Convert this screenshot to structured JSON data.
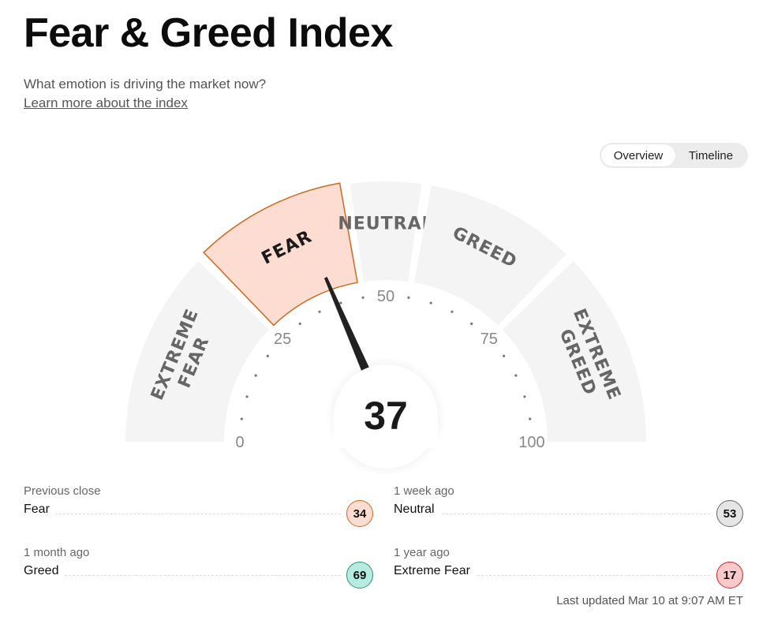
{
  "header": {
    "title": "Fear & Greed Index",
    "subtitle": "What emotion is driving the market now?",
    "learn_more": "Learn more about the index"
  },
  "view_toggle": {
    "overview": "Overview",
    "timeline": "Timeline",
    "selected": "Overview"
  },
  "gauge": {
    "value": 37,
    "active_segment": "FEAR",
    "segments": [
      {
        "label": "EXTREME FEAR",
        "lines": [
          "EXTREME",
          "FEAR"
        ],
        "range": [
          0,
          25
        ]
      },
      {
        "label": "FEAR",
        "lines": [
          "FEAR"
        ],
        "range": [
          25,
          45
        ]
      },
      {
        "label": "NEUTRAL",
        "lines": [
          "NEUTRAL"
        ],
        "range": [
          45,
          55
        ]
      },
      {
        "label": "GREED",
        "lines": [
          "GREED"
        ],
        "range": [
          55,
          75
        ]
      },
      {
        "label": "EXTREME GREED",
        "lines": [
          "EXTREME",
          "GREED"
        ],
        "range": [
          75,
          100
        ]
      }
    ],
    "scale_labels": [
      "0",
      "25",
      "50",
      "75",
      "100"
    ],
    "colors": {
      "segment": "#f4f4f4",
      "active_fill": "#fddcd1",
      "active_stroke": "#cc6a1f",
      "needle": "#222222",
      "label": "#666666"
    }
  },
  "history": [
    {
      "caption": "Previous close",
      "label": "Fear",
      "value": "34",
      "color": "#fddcd1",
      "border": "#cc6a1f"
    },
    {
      "caption": "1 week ago",
      "label": "Neutral",
      "value": "53",
      "color": "#e5e5e5",
      "border": "#666666"
    },
    {
      "caption": "1 month ago",
      "label": "Greed",
      "value": "69",
      "color": "#b6ecdf",
      "border": "#2f8f7a"
    },
    {
      "caption": "1 year ago",
      "label": "Extreme Fear",
      "value": "17",
      "color": "#fbc9c9",
      "border": "#c62828"
    }
  ],
  "last_updated": "Last updated Mar 10 at 9:07 AM ET"
}
